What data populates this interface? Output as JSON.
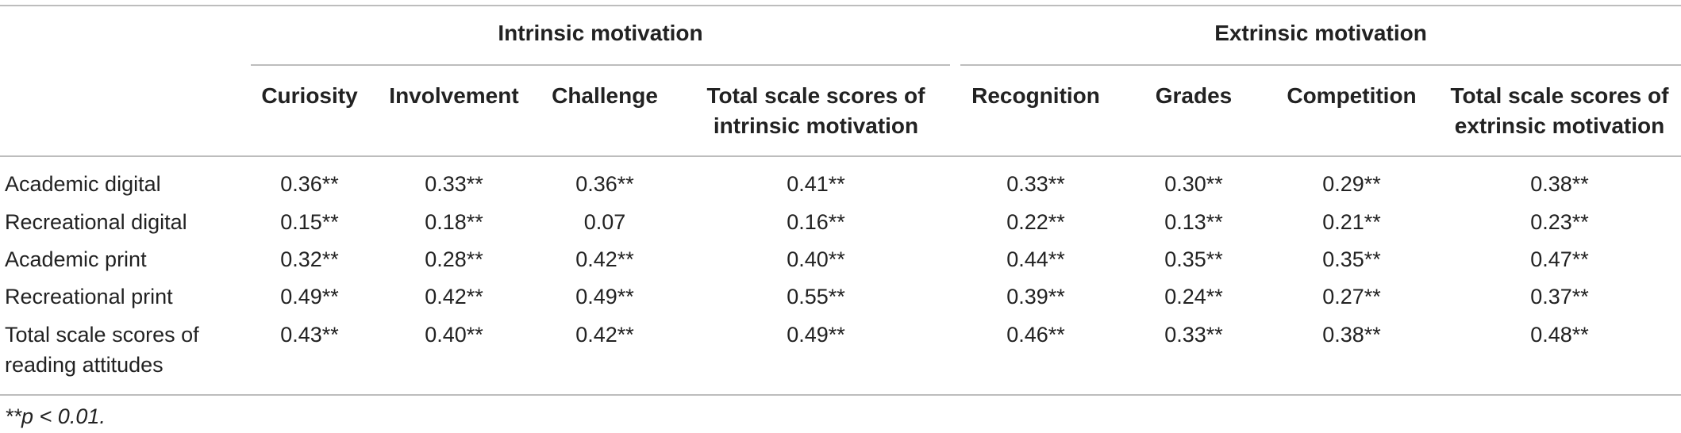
{
  "groups": {
    "intrinsic": "Intrinsic motivation",
    "extrinsic": "Extrinsic motivation"
  },
  "columns": [
    "Curiosity",
    "Involvement",
    "Challenge",
    "Total scale scores of intrinsic motivation",
    "Recognition",
    "Grades",
    "Competition",
    "Total scale scores of extrinsic motivation"
  ],
  "columns_lines": [
    [
      "Curiosity"
    ],
    [
      "Involvement"
    ],
    [
      "Challenge"
    ],
    [
      "Total scale scores of",
      "intrinsic motivation"
    ],
    [
      "Recognition"
    ],
    [
      "Grades"
    ],
    [
      "Competition"
    ],
    [
      "Total scale scores of",
      "extrinsic motivation"
    ]
  ],
  "rows": [
    {
      "label": "Academic digital",
      "values": [
        "0.36**",
        "0.33**",
        "0.36**",
        "0.41**",
        "0.33**",
        "0.30**",
        "0.29**",
        "0.38**"
      ]
    },
    {
      "label": "Recreational digital",
      "values": [
        "0.15**",
        "0.18**",
        "0.07",
        "0.16**",
        "0.22**",
        "0.13**",
        "0.21**",
        "0.23**"
      ]
    },
    {
      "label": "Academic print",
      "values": [
        "0.32**",
        "0.28**",
        "0.42**",
        "0.40**",
        "0.44**",
        "0.35**",
        "0.35**",
        "0.47**"
      ]
    },
    {
      "label": "Recreational print",
      "values": [
        "0.49**",
        "0.42**",
        "0.49**",
        "0.55**",
        "0.39**",
        "0.24**",
        "0.27**",
        "0.37**"
      ]
    },
    {
      "label": "Total scale scores of reading attitudes",
      "label_lines": [
        "Total scale scores of",
        "reading attitudes"
      ],
      "values": [
        "0.43**",
        "0.40**",
        "0.42**",
        "0.49**",
        "0.46**",
        "0.33**",
        "0.38**",
        "0.48**"
      ]
    }
  ],
  "footnote": "**p < 0.01."
}
